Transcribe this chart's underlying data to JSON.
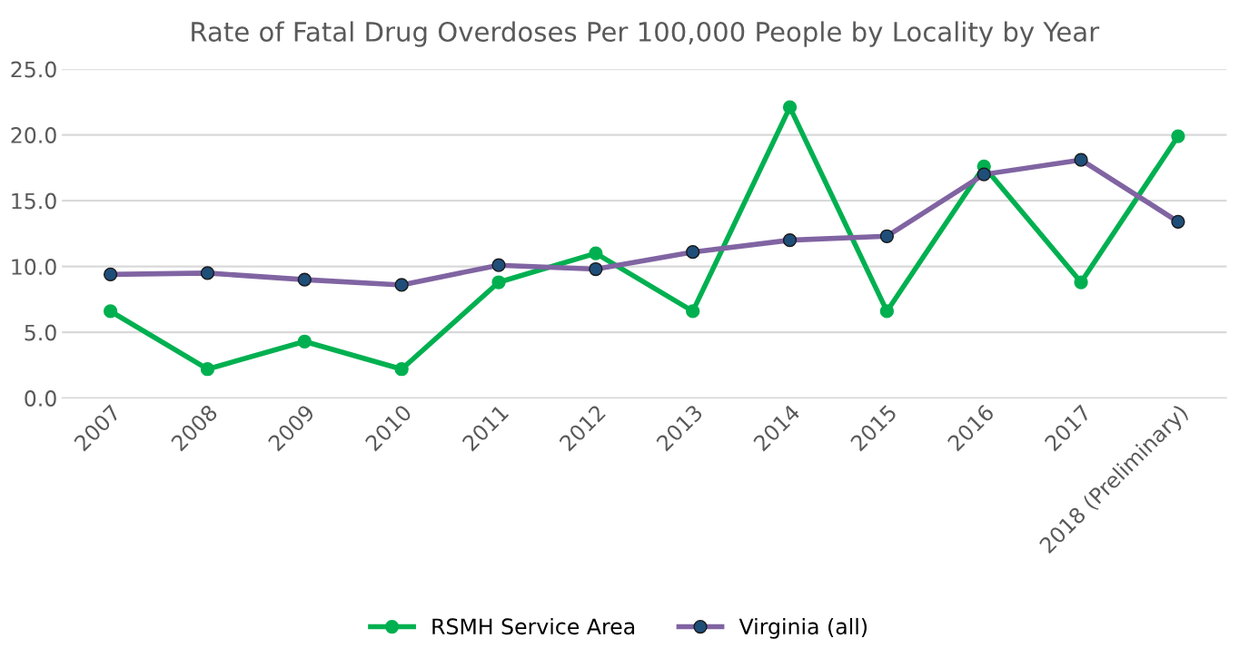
{
  "chart_data": {
    "type": "line",
    "title": "Rate of Fatal Drug Overdoses Per 100,000 People by Locality by Year",
    "categories": [
      "2007",
      "2008",
      "2009",
      "2010",
      "2011",
      "2012",
      "2013",
      "2014",
      "2015",
      "2016",
      "2017",
      "2018 (Preliminary)"
    ],
    "series": [
      {
        "name": "RSMH Service Area",
        "color": "#00b050",
        "values": [
          6.6,
          2.2,
          4.3,
          2.2,
          8.8,
          11.0,
          6.6,
          22.1,
          6.6,
          17.6,
          8.8,
          19.9
        ]
      },
      {
        "name": "Virginia (all)",
        "color": "#8064a2",
        "values": [
          9.4,
          9.5,
          9.0,
          8.6,
          10.1,
          9.8,
          11.1,
          12.0,
          12.3,
          17.0,
          18.1,
          13.4
        ]
      }
    ],
    "ylim": [
      0,
      25
    ],
    "yticks": [
      {
        "value": 0,
        "label": "0.0"
      },
      {
        "value": 5,
        "label": "5.0"
      },
      {
        "value": 10,
        "label": "10.0"
      },
      {
        "value": 15,
        "label": "15.0"
      },
      {
        "value": 20,
        "label": "20.0"
      },
      {
        "value": 25,
        "label": "25.0"
      }
    ],
    "grid": "y",
    "legend": "bottom",
    "marker": "circle",
    "line_style": "solid"
  }
}
